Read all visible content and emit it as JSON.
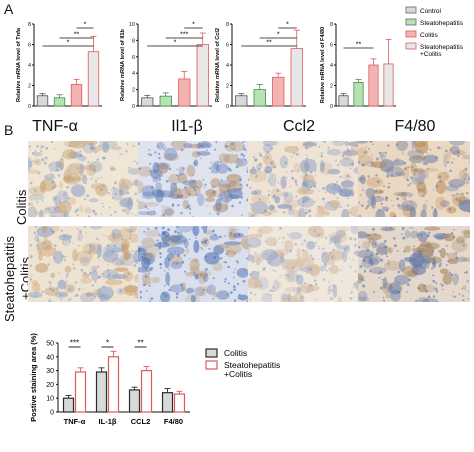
{
  "panel_labels": {
    "a": "A",
    "b": "B"
  },
  "colors": {
    "control": "#d9d9d9",
    "steatohepatitis": "#b6e3b4",
    "colitis": "#f2b3b3",
    "combo": "#e7e7e7",
    "red_edge": "#e05a5a",
    "bar_dark": "#2b2b2b",
    "axis": "#111111"
  },
  "legend_a": [
    {
      "label": "Control",
      "color": "#d9d9d9"
    },
    {
      "label": "Steatohepatitis",
      "color": "#b6e3b4"
    },
    {
      "label": "Colitis",
      "color": "#f2b3b3"
    },
    {
      "label": "Steatohepatitis\n+Colitis",
      "color": "#e7e7e7"
    }
  ],
  "legend_b": [
    {
      "label": "Colitis",
      "color": "#d9d9d9"
    },
    {
      "label": "Steatohepatitis\n+Colitis",
      "color": "#ffffff"
    }
  ],
  "histology": {
    "columns": [
      "TNF-α",
      "Il1-β",
      "Ccl2",
      "F4/80"
    ],
    "rows": [
      "Colitis",
      "Steatohepatitis\n+Colitis"
    ]
  },
  "chart_data": [
    {
      "type": "bar",
      "ylabel": "Relative mRNA level of Tnfa",
      "categories": [
        "Control",
        "Steatohepatitis",
        "Colitis",
        "Steatohepatitis+Colitis"
      ],
      "values": [
        1.0,
        0.8,
        2.1,
        5.3
      ],
      "errors": [
        0.2,
        0.3,
        0.5,
        1.5
      ],
      "yticks": [
        0,
        2,
        4,
        6,
        8
      ],
      "ylim": [
        0,
        8
      ],
      "significance": [
        [
          "*",
          0,
          3
        ],
        [
          "**",
          1,
          3
        ],
        [
          "*",
          2,
          3
        ]
      ]
    },
    {
      "type": "bar",
      "ylabel": "Relative mRNA level of Il1b",
      "categories": [
        "Control",
        "Steatohepatitis",
        "Colitis",
        "Steatohepatitis+Colitis"
      ],
      "values": [
        1.0,
        1.2,
        3.3,
        7.5
      ],
      "errors": [
        0.3,
        0.4,
        0.9,
        1.4
      ],
      "yticks": [
        0,
        2,
        4,
        6,
        8,
        10
      ],
      "ylim": [
        0,
        10
      ],
      "significance": [
        [
          "*",
          0,
          3
        ],
        [
          "***",
          1,
          3
        ],
        [
          "*",
          2,
          3
        ]
      ]
    },
    {
      "type": "bar",
      "ylabel": "Relative mRNA level of Ccl2",
      "categories": [
        "Control",
        "Steatohepatitis",
        "Colitis",
        "Steatohepatitis+Colitis"
      ],
      "values": [
        1.0,
        1.6,
        2.8,
        5.6
      ],
      "errors": [
        0.2,
        0.5,
        0.4,
        1.8
      ],
      "yticks": [
        0,
        2,
        4,
        6,
        8
      ],
      "ylim": [
        0,
        8
      ],
      "significance": [
        [
          "**",
          0,
          3
        ],
        [
          "*",
          1,
          3
        ],
        [
          "*",
          2,
          3
        ]
      ]
    },
    {
      "type": "bar",
      "ylabel": "Relative mRNA level of F4/80",
      "categories": [
        "Control",
        "Steatohepatitis",
        "Colitis",
        "Steatohepatitis+Colitis"
      ],
      "values": [
        1.0,
        2.3,
        4.0,
        4.1
      ],
      "errors": [
        0.2,
        0.3,
        0.6,
        2.4
      ],
      "yticks": [
        0,
        2,
        4,
        6,
        8
      ],
      "ylim": [
        0,
        8
      ],
      "significance": [
        [
          "**",
          0,
          2
        ]
      ]
    },
    {
      "type": "bar",
      "ylabel": "Postive staining area (%)",
      "categories": [
        "TNF-α",
        "IL-1β",
        "CCL2",
        "F4/80"
      ],
      "series": [
        {
          "name": "Colitis",
          "values": [
            10,
            29,
            16,
            14
          ],
          "errors": [
            2,
            3,
            2,
            3
          ]
        },
        {
          "name": "Steatohepatitis\n+Colitis",
          "values": [
            29,
            40,
            30,
            13
          ],
          "errors": [
            3,
            4,
            3,
            2
          ]
        }
      ],
      "yticks": [
        0,
        10,
        20,
        30,
        40,
        50
      ],
      "ylim": [
        0,
        50
      ],
      "significance": [
        [
          "***",
          0
        ],
        [
          "*",
          1
        ],
        [
          "**",
          2
        ]
      ]
    }
  ]
}
